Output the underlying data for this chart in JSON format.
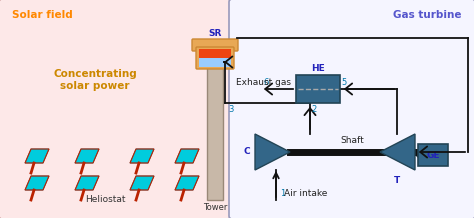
{
  "bg_color": "#ffffff",
  "solar_field_color": "#fde8e8",
  "solar_field_edge": "#cc9999",
  "gas_turbine_color": "#f5f5ff",
  "gas_turbine_edge": "#9999bb",
  "title_solar": "Solar field",
  "title_gas": "Gas turbine",
  "title_solar_color": "#ff8800",
  "title_gas_color": "#5555cc",
  "sun_color": "#ffff55",
  "sun_edge": "#ffee00",
  "tower_color": "#c8b8a8",
  "tower_edge": "#998878",
  "SR_outer_color": "#e8a855",
  "SR_outer_edge": "#cc8833",
  "SR_hot_color": "#ee4411",
  "SR_cold_color": "#99ccff",
  "SR_label": "SR",
  "SR_label_color": "#2222bb",
  "HE_color": "#336688",
  "HE_edge": "#224455",
  "HE_label": "HE",
  "HE_label_color": "#2222bb",
  "turbine_color": "#336688",
  "turbine_edge": "#224455",
  "shaft_color": "#111111",
  "GE_color": "#336688",
  "GE_edge": "#224455",
  "GE_label": "GE",
  "GE_label_color": "#2222bb",
  "C_label": "C",
  "T_label": "T",
  "CT_label_color": "#2222bb",
  "concentrating_text": "Concentrating\nsolar power",
  "concentrating_color": "#cc8800",
  "heliostat_text": "Heliostat",
  "tower_text": "Tower",
  "exhaust_text": "Exhaust gas",
  "shaft_text": "Shaft",
  "air_intake_text": "Air intake",
  "heliostat_color": "#00ccdd",
  "heliostat_frame": "#bb2200",
  "pipe_color": "#111111",
  "node_color": "#0077aa",
  "dashed_color": "#aaaaaa"
}
